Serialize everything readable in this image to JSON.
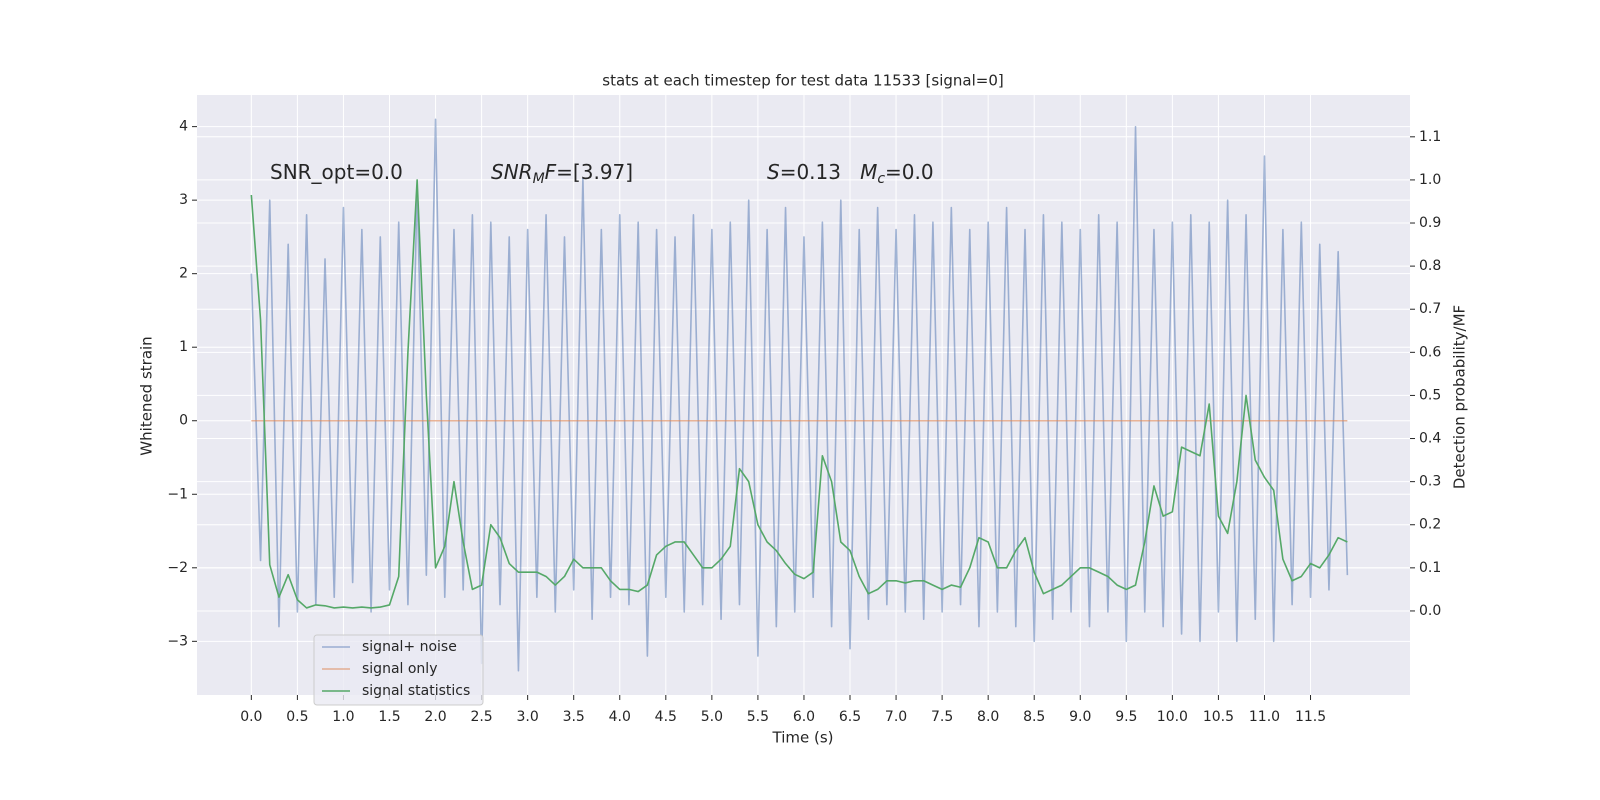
{
  "chart_data": {
    "type": "line",
    "title": "stats at each timestep for test data 11533 [signal=0]",
    "x_label": "Time (s)",
    "y_label": "Whitened strain",
    "y2_label": "Detection probability/MF",
    "annotations": [
      [
        {
          "text": "SNR_opt=0.0"
        }
      ],
      [
        {
          "text": "SNR",
          "italic": true
        },
        {
          "text": "M",
          "italic": true,
          "sub": true
        },
        {
          "text": "F",
          "italic": true
        },
        {
          "text": "=[3.97]"
        }
      ],
      [
        {
          "text": "S",
          "italic": true
        },
        {
          "text": "=0.13   "
        },
        {
          "text": "M",
          "italic": true
        },
        {
          "text": "c",
          "italic": true,
          "sub": true
        },
        {
          "text": "=0.0"
        }
      ]
    ],
    "xlim": [
      -0.59,
      12.58
    ],
    "ylim": [
      -3.73,
      4.43
    ],
    "y2lim": [
      -0.195,
      1.197
    ],
    "grid": true,
    "legend": "lower left",
    "xticks": [
      {
        "value": 0,
        "label": "0.0"
      },
      {
        "value": 0.5,
        "label": "0.5"
      },
      {
        "value": 1,
        "label": "1.0"
      },
      {
        "value": 1.5,
        "label": "1.5"
      },
      {
        "value": 2,
        "label": "2.0"
      },
      {
        "value": 2.5,
        "label": "2.5"
      },
      {
        "value": 3,
        "label": "3.0"
      },
      {
        "value": 3.5,
        "label": "3.5"
      },
      {
        "value": 4,
        "label": "4.0"
      },
      {
        "value": 4.5,
        "label": "4.5"
      },
      {
        "value": 5,
        "label": "5.0"
      },
      {
        "value": 5.5,
        "label": "5.5"
      },
      {
        "value": 6,
        "label": "6.0"
      },
      {
        "value": 6.5,
        "label": "6.5"
      },
      {
        "value": 7,
        "label": "7.0"
      },
      {
        "value": 7.5,
        "label": "7.5"
      },
      {
        "value": 8,
        "label": "8.0"
      },
      {
        "value": 8.5,
        "label": "8.5"
      },
      {
        "value": 9,
        "label": "9.0"
      },
      {
        "value": 9.5,
        "label": "9.5"
      },
      {
        "value": 10,
        "label": "10.0"
      },
      {
        "value": 10.5,
        "label": "10.5"
      },
      {
        "value": 11,
        "label": "11.0"
      },
      {
        "value": 11.5,
        "label": "11.5"
      }
    ],
    "yticks": [
      {
        "value": -3,
        "label": "−3"
      },
      {
        "value": -2,
        "label": "−2"
      },
      {
        "value": -1,
        "label": "−1"
      },
      0,
      1,
      2,
      3,
      4
    ],
    "y2ticks": [
      {
        "value": 0,
        "label": "0.0"
      },
      {
        "value": 0.1,
        "label": "0.1"
      },
      {
        "value": 0.2,
        "label": "0.2"
      },
      {
        "value": 0.3,
        "label": "0.3"
      },
      {
        "value": 0.4,
        "label": "0.4"
      },
      {
        "value": 0.5,
        "label": "0.5"
      },
      {
        "value": 0.6,
        "label": "0.6"
      },
      {
        "value": 0.7,
        "label": "0.7"
      },
      {
        "value": 0.8,
        "label": "0.8"
      },
      {
        "value": 0.9,
        "label": "0.9"
      },
      {
        "value": 1,
        "label": "1.0"
      },
      {
        "value": 1.1,
        "label": "1.1"
      }
    ],
    "x": [
      0,
      0.1,
      0.2,
      0.3,
      0.4,
      0.5,
      0.6,
      0.7,
      0.8,
      0.9,
      1,
      1.1,
      1.2,
      1.3,
      1.4,
      1.5,
      1.6,
      1.7,
      1.8,
      1.9,
      2,
      2.1,
      2.2,
      2.3,
      2.4,
      2.5,
      2.6,
      2.7,
      2.8,
      2.9,
      3,
      3.1,
      3.2,
      3.3,
      3.4,
      3.5,
      3.6,
      3.7,
      3.8,
      3.9,
      4,
      4.1,
      4.2,
      4.3,
      4.4,
      4.5,
      4.6,
      4.7,
      4.8,
      4.9,
      5,
      5.1,
      5.2,
      5.3,
      5.4,
      5.5,
      5.6,
      5.7,
      5.8,
      5.9,
      6,
      6.1,
      6.2,
      6.3,
      6.4,
      6.5,
      6.6,
      6.7,
      6.8,
      6.9,
      7,
      7.1,
      7.2,
      7.3,
      7.4,
      7.5,
      7.6,
      7.7,
      7.8,
      7.9,
      8,
      8.1,
      8.2,
      8.3,
      8.4,
      8.5,
      8.6,
      8.7,
      8.8,
      8.9,
      9,
      9.1,
      9.2,
      9.3,
      9.4,
      9.5,
      9.6,
      9.7,
      9.8,
      9.9,
      10,
      10.1,
      10.2,
      10.3,
      10.4,
      10.5,
      10.6,
      10.7,
      10.8,
      10.9,
      11,
      11.1,
      11.2,
      11.3,
      11.4,
      11.5,
      11.6,
      11.7,
      11.8,
      11.9
    ],
    "series": [
      {
        "name": "signal+ noise",
        "color": "#4c72b0",
        "opacity": 0.5,
        "values": [
          2.0,
          -1.9,
          3.0,
          -2.8,
          2.4,
          -2.6,
          2.8,
          -2.5,
          2.2,
          -2.4,
          2.9,
          -2.2,
          2.6,
          -2.6,
          2.5,
          -2.3,
          2.7,
          -2.5,
          3.2,
          -2.1,
          4.1,
          -2.4,
          2.6,
          -2.3,
          2.8,
          -3.3,
          2.7,
          -2.5,
          2.5,
          -3.4,
          2.6,
          -2.4,
          2.8,
          -2.6,
          2.5,
          -2.3,
          3.3,
          -2.7,
          2.6,
          -2.4,
          2.8,
          -2.5,
          2.7,
          -3.2,
          2.6,
          -2.4,
          2.5,
          -2.6,
          2.8,
          -2.5,
          2.6,
          -2.7,
          2.7,
          -2.5,
          3.0,
          -3.2,
          2.6,
          -2.8,
          2.9,
          -2.6,
          2.5,
          -2.4,
          2.7,
          -2.8,
          3.0,
          -3.1,
          2.6,
          -2.7,
          2.9,
          -2.5,
          2.6,
          -2.6,
          2.8,
          -2.7,
          2.7,
          -2.6,
          2.9,
          -2.5,
          2.6,
          -2.8,
          2.7,
          -2.6,
          2.9,
          -2.8,
          2.6,
          -3.0,
          2.8,
          -2.7,
          2.7,
          -2.6,
          2.6,
          -2.8,
          2.8,
          -2.6,
          2.7,
          -3.0,
          4.0,
          -2.6,
          2.6,
          -2.8,
          2.7,
          -2.9,
          2.8,
          -3.0,
          2.7,
          -2.6,
          3.0,
          -3.0,
          2.8,
          -2.7,
          3.6,
          -3.0,
          2.6,
          -2.5,
          2.7,
          -2.4,
          2.4,
          -2.3,
          2.3,
          -2.1
        ]
      },
      {
        "name": "signal only",
        "color": "#dd8452",
        "opacity": 0.6,
        "values": [
          0,
          0,
          0,
          0,
          0,
          0,
          0,
          0,
          0,
          0,
          0,
          0,
          0,
          0,
          0,
          0,
          0,
          0,
          0,
          0,
          0,
          0,
          0,
          0,
          0,
          0,
          0,
          0,
          0,
          0,
          0,
          0,
          0,
          0,
          0,
          0,
          0,
          0,
          0,
          0,
          0,
          0,
          0,
          0,
          0,
          0,
          0,
          0,
          0,
          0,
          0,
          0,
          0,
          0,
          0,
          0,
          0,
          0,
          0,
          0,
          0,
          0,
          0,
          0,
          0,
          0,
          0,
          0,
          0,
          0,
          0,
          0,
          0,
          0,
          0,
          0,
          0,
          0,
          0,
          0,
          0,
          0,
          0,
          0,
          0,
          0,
          0,
          0,
          0,
          0,
          0,
          0,
          0,
          0,
          0,
          0,
          0,
          0,
          0,
          0,
          0,
          0,
          0,
          0,
          0,
          0,
          0,
          0,
          0,
          0,
          0,
          0,
          0,
          0,
          0,
          0,
          0,
          0,
          0,
          0
        ]
      },
      {
        "name": "signal statistics",
        "color": "#55a868",
        "opacity": 1,
        "axis": "y2",
        "values": [
          0.965,
          0.675,
          0.107,
          0.032,
          0.084,
          0.026,
          0.007,
          0.014,
          0.012,
          0.007,
          0.009,
          0.007,
          0.009,
          0.007,
          0.009,
          0.014,
          0.08,
          0.6,
          1.0,
          0.5,
          0.1,
          0.15,
          0.3,
          0.16,
          0.05,
          0.06,
          0.2,
          0.17,
          0.11,
          0.09,
          0.09,
          0.09,
          0.08,
          0.06,
          0.08,
          0.12,
          0.1,
          0.1,
          0.1,
          0.07,
          0.05,
          0.05,
          0.045,
          0.06,
          0.13,
          0.15,
          0.16,
          0.16,
          0.13,
          0.1,
          0.1,
          0.12,
          0.15,
          0.33,
          0.3,
          0.2,
          0.16,
          0.14,
          0.11,
          0.085,
          0.075,
          0.09,
          0.36,
          0.3,
          0.16,
          0.14,
          0.08,
          0.04,
          0.05,
          0.07,
          0.07,
          0.065,
          0.07,
          0.07,
          0.06,
          0.05,
          0.06,
          0.055,
          0.1,
          0.17,
          0.16,
          0.1,
          0.1,
          0.14,
          0.17,
          0.09,
          0.04,
          0.05,
          0.06,
          0.08,
          0.1,
          0.1,
          0.09,
          0.08,
          0.06,
          0.05,
          0.06,
          0.16,
          0.29,
          0.22,
          0.23,
          0.38,
          0.37,
          0.36,
          0.48,
          0.22,
          0.18,
          0.3,
          0.5,
          0.35,
          0.31,
          0.28,
          0.12,
          0.07,
          0.08,
          0.11,
          0.1,
          0.13,
          0.17,
          0.16
        ]
      }
    ]
  }
}
